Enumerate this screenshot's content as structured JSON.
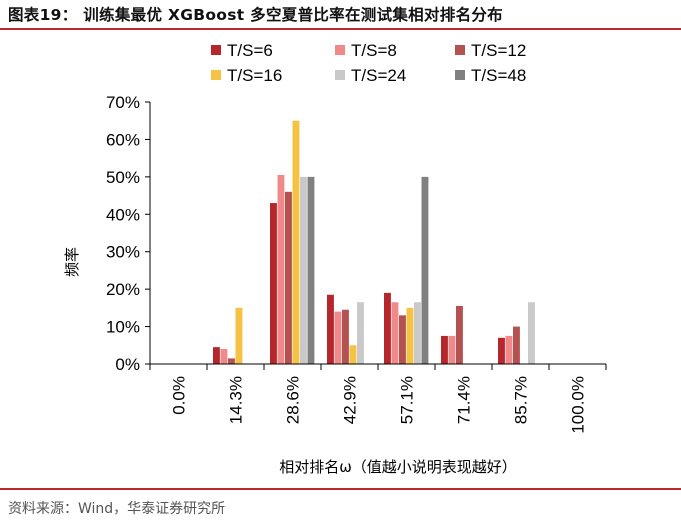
{
  "figure": {
    "title": "图表19： 训练集最优 XGBoost 多空夏普比率在测试集相对排名分布",
    "source": "资料来源：Wind，华泰证券研究所"
  },
  "colors": {
    "accent": "#c0262d",
    "series": [
      "#b5272d",
      "#f08a8a",
      "#b45151",
      "#f6c244",
      "#c9c9c9",
      "#808080"
    ]
  },
  "chart_data": {
    "type": "bar",
    "categories": [
      "0.0%",
      "14.3%",
      "28.6%",
      "42.9%",
      "57.1%",
      "71.4%",
      "85.7%",
      "100.0%"
    ],
    "series": [
      {
        "name": "T/S=6",
        "values": [
          0,
          4.5,
          43,
          18.5,
          19,
          7.5,
          7,
          0
        ]
      },
      {
        "name": "T/S=8",
        "values": [
          0,
          4,
          50.5,
          14,
          16.5,
          7.5,
          7.5,
          0
        ]
      },
      {
        "name": "T/S=12",
        "values": [
          0,
          1.5,
          46,
          14.5,
          13,
          15.5,
          10,
          0
        ]
      },
      {
        "name": "T/S=16",
        "values": [
          0,
          15,
          65,
          5,
          15,
          0,
          0,
          0
        ]
      },
      {
        "name": "T/S=24",
        "values": [
          0,
          0,
          50,
          16.5,
          16.5,
          0,
          16.5,
          0
        ]
      },
      {
        "name": "T/S=48",
        "values": [
          0,
          0,
          50,
          0,
          50,
          0,
          0,
          0
        ]
      }
    ],
    "xlabel": "相对排名ω（值越小说明表现越好）",
    "ylabel": "频率",
    "ylim": [
      0,
      70
    ],
    "yticks": [
      "0%",
      "10%",
      "20%",
      "30%",
      "40%",
      "50%",
      "60%",
      "70%"
    ],
    "grid": false,
    "legend_position": "top"
  }
}
